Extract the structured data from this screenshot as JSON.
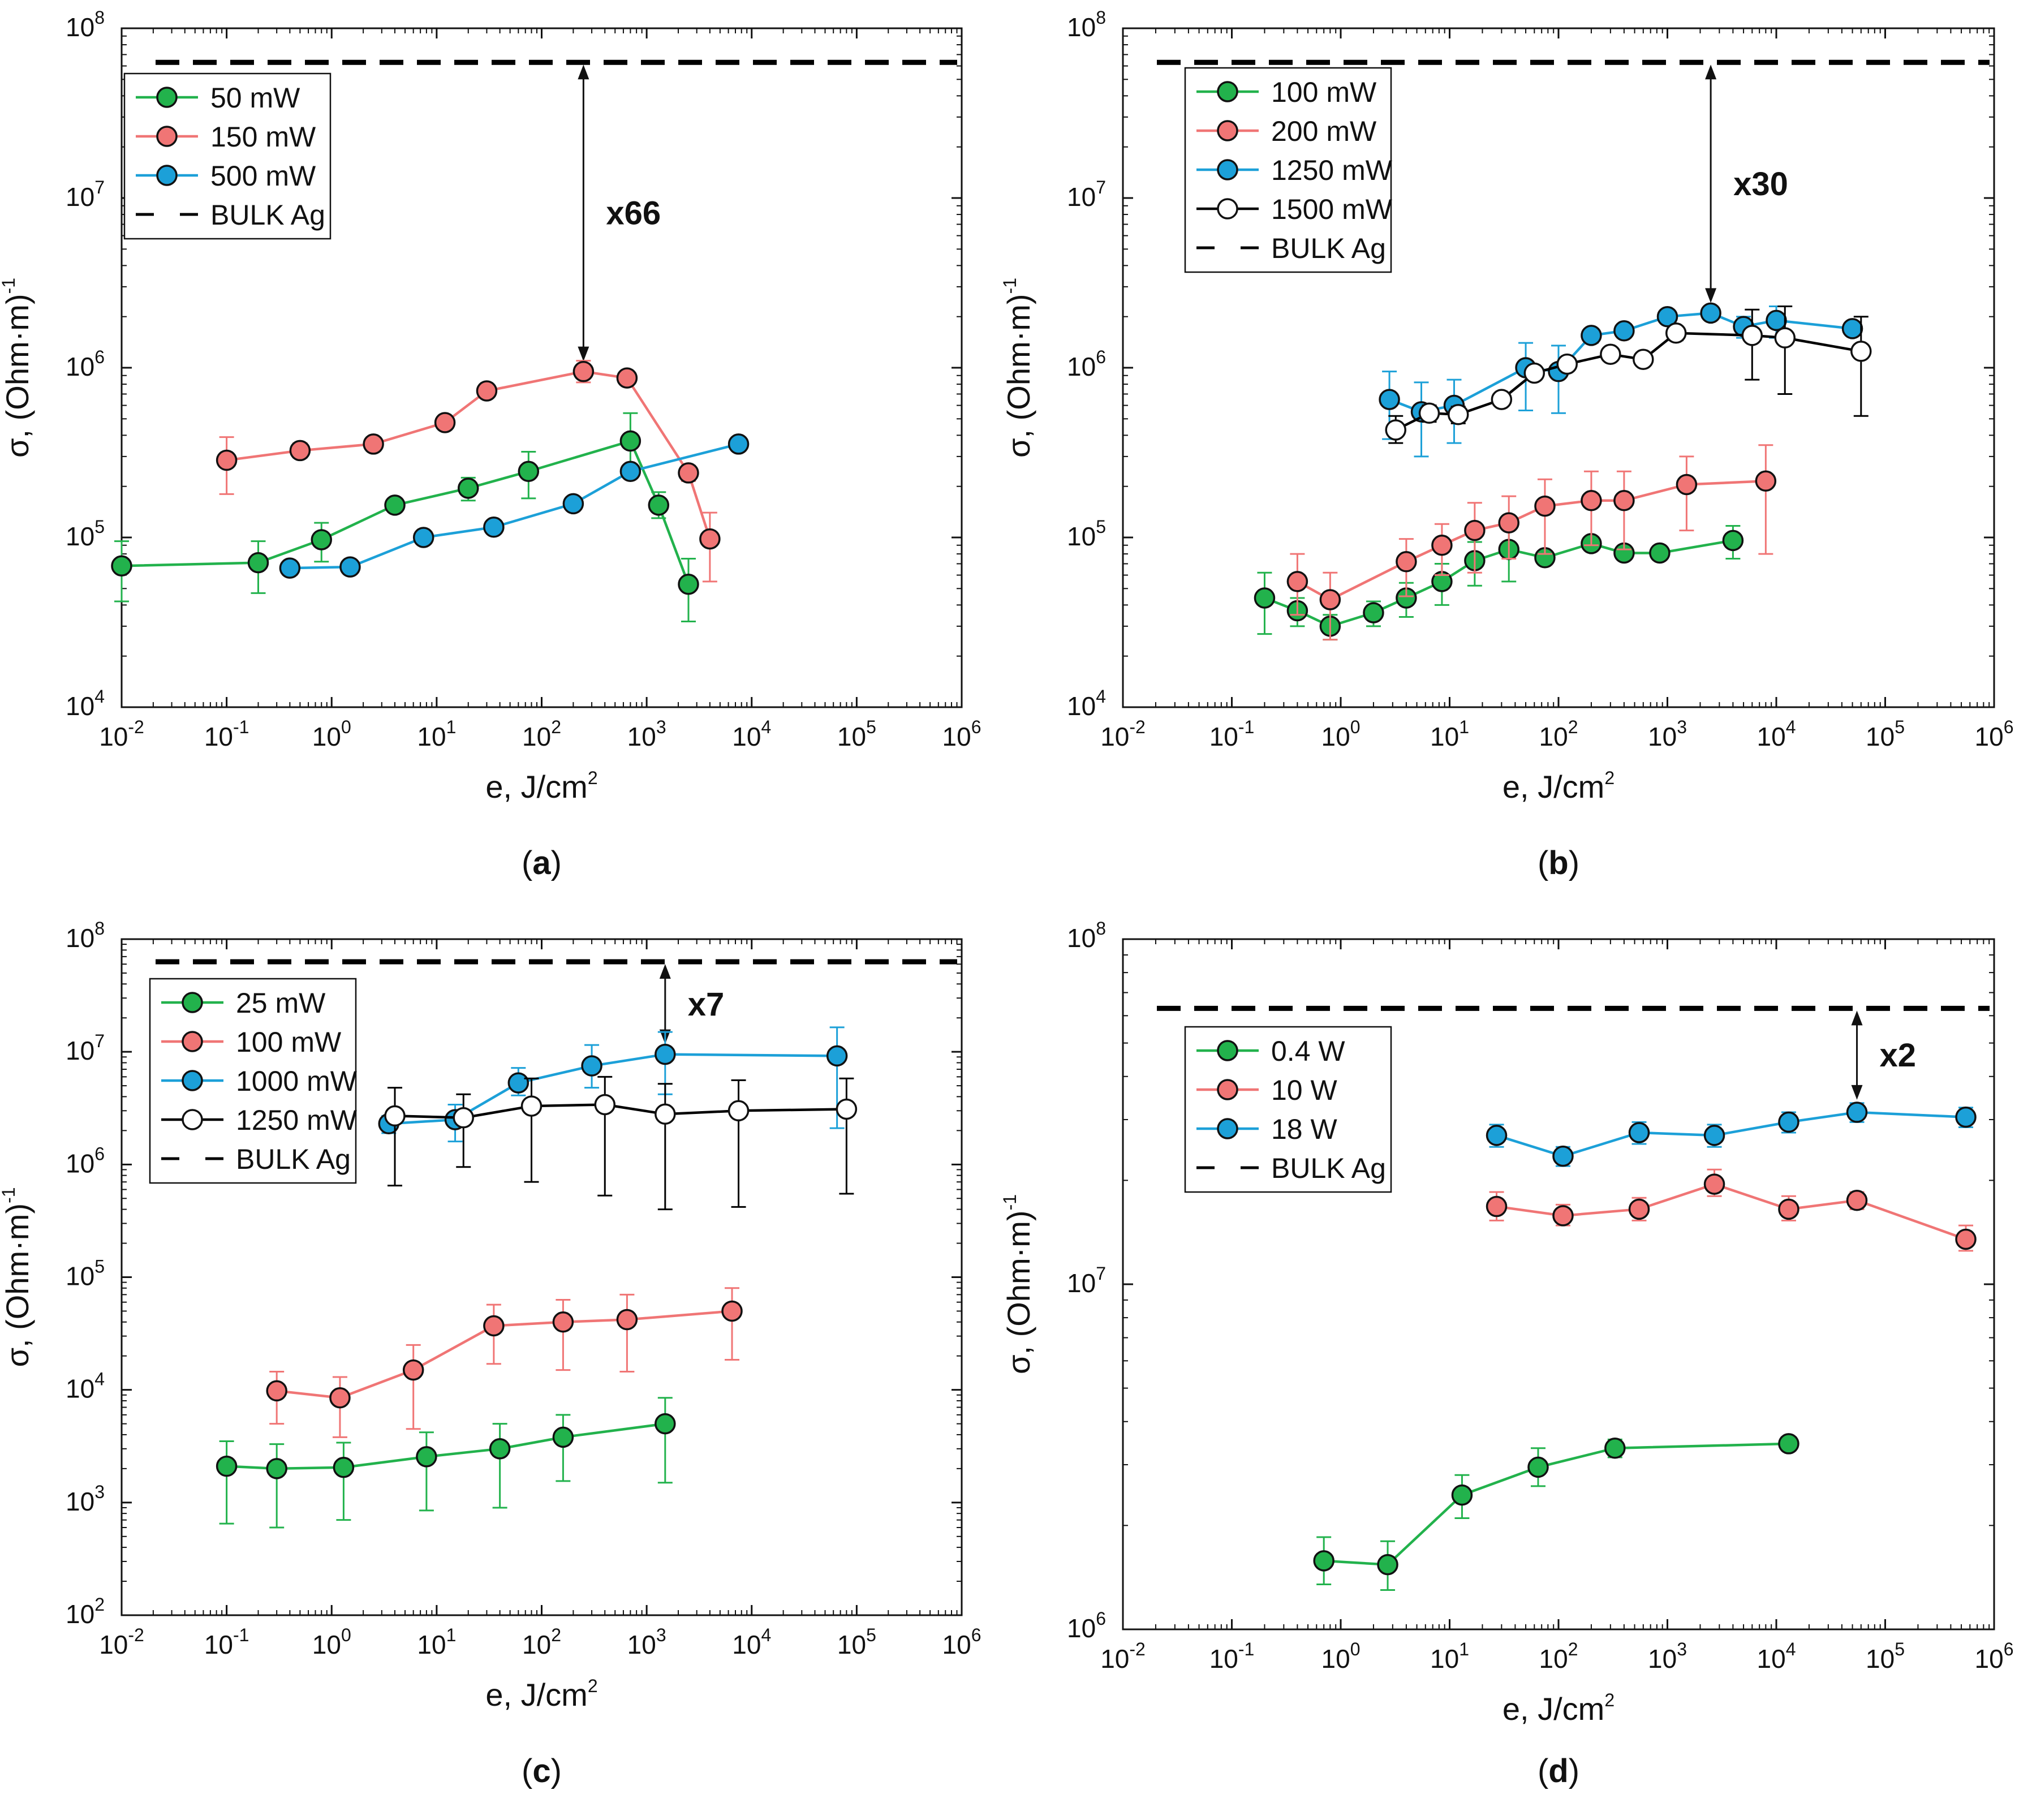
{
  "chart_data": [
    {
      "type": "scatter",
      "panel": "a",
      "x_scale": "log",
      "y_scale": "log",
      "xlim_exp": [
        -2,
        6
      ],
      "ylim_exp": [
        4,
        8
      ],
      "xlabel": "e, J/cm",
      "xlabel_sup": "2",
      "ylabel": "σ, (Ohm·m)",
      "ylabel_sup": "-1",
      "bulk_ag": 63000000.0,
      "legend": {
        "position": "top-left",
        "bulk_label": "BULK Ag"
      },
      "annotation": {
        "text": "x66",
        "x": 250,
        "y_from": 63000000.0,
        "y_to": 950000.0
      },
      "series": [
        {
          "name": "50 mW",
          "color": "#22b24c",
          "fill": "#22b24c",
          "x": [
            0.01,
            0.2,
            0.8,
            4,
            20,
            75,
            700,
            1300,
            2500
          ],
          "y": [
            68000,
            71000,
            97000,
            155000,
            195000,
            245000,
            370000,
            155000,
            53000
          ],
          "err_lo": [
            42000,
            47000,
            72000,
            142000,
            165000,
            170000,
            240000,
            130000,
            32000
          ],
          "err_hi": [
            95000,
            95000,
            122000,
            168000,
            225000,
            320000,
            540000,
            185000,
            75000
          ]
        },
        {
          "name": "150 mW",
          "color": "#f07575",
          "fill": "#f07575",
          "x": [
            0.1,
            0.5,
            2.5,
            12,
            30,
            250,
            650,
            2500,
            4000
          ],
          "y": [
            285000,
            325000,
            355000,
            475000,
            730000,
            950000,
            870000,
            240000,
            98000
          ],
          "err_lo": [
            180000,
            295000,
            330000,
            445000,
            700000,
            820000,
            840000,
            215000,
            55000
          ],
          "err_hi": [
            390000,
            360000,
            385000,
            505000,
            765000,
            1100000,
            905000,
            265000,
            140000
          ]
        },
        {
          "name": "500 mW",
          "color": "#1ca0d8",
          "fill": "#1ca0d8",
          "x": [
            0.4,
            1.5,
            7.5,
            35,
            200,
            700,
            7500
          ],
          "y": [
            66000,
            67000,
            100000,
            115000,
            158000,
            245000,
            355000
          ],
          "err_lo": [
            60000,
            63000,
            94000,
            107000,
            150000,
            235000,
            345000
          ],
          "err_hi": [
            72000,
            71000,
            106000,
            123000,
            166000,
            255000,
            365000
          ]
        }
      ]
    },
    {
      "type": "scatter",
      "panel": "b",
      "x_scale": "log",
      "y_scale": "log",
      "xlim_exp": [
        -2,
        6
      ],
      "ylim_exp": [
        4,
        8
      ],
      "xlabel": "e, J/cm",
      "xlabel_sup": "2",
      "ylabel": "σ, (Ohm·m)",
      "ylabel_sup": "-1",
      "bulk_ag": 63000000.0,
      "legend": {
        "position": "top-left",
        "bulk_label": "BULK Ag"
      },
      "annotation": {
        "text": "x30",
        "x": 2500,
        "y_from": 63000000.0,
        "y_to": 2100000.0
      },
      "series": [
        {
          "name": "100 mW",
          "color": "#22b24c",
          "fill": "#22b24c",
          "x": [
            0.2,
            0.4,
            0.8,
            2,
            4,
            8.5,
            17,
            35,
            75,
            200,
            400,
            850,
            4000
          ],
          "y": [
            44000,
            37000,
            30000,
            36000,
            44000,
            55000,
            73000,
            85000,
            76000,
            92000,
            81000,
            81000,
            96000
          ],
          "err_lo": [
            27000,
            30000,
            25000,
            30000,
            34000,
            40000,
            52000,
            55000,
            72000,
            88000,
            77000,
            78000,
            75000
          ],
          "err_hi": [
            62000,
            44000,
            35000,
            42000,
            54000,
            70000,
            94000,
            115000,
            80000,
            96000,
            85000,
            84000,
            117000
          ]
        },
        {
          "name": "200 mW",
          "color": "#f07575",
          "fill": "#f07575",
          "x": [
            0.4,
            0.8,
            4,
            8.5,
            17,
            35,
            75,
            200,
            400,
            1500,
            8000
          ],
          "y": [
            55000,
            43000,
            72000,
            90000,
            110000,
            122000,
            153000,
            165000,
            165000,
            205000,
            215000
          ],
          "err_lo": [
            35000,
            25000,
            45000,
            60000,
            62000,
            75000,
            80000,
            90000,
            85000,
            110000,
            80000
          ],
          "err_hi": [
            80000,
            62000,
            98000,
            120000,
            160000,
            175000,
            220000,
            245000,
            245000,
            300000,
            350000
          ]
        },
        {
          "name": "1250 mW",
          "color": "#1ca0d8",
          "fill": "#1ca0d8",
          "x": [
            2.8,
            5.5,
            11,
            50,
            100,
            200,
            400,
            1000,
            2500,
            5000,
            10000,
            50000
          ],
          "y": [
            650000,
            550000,
            600000,
            1000000,
            950000,
            1550000,
            1650000,
            2000000,
            2100000,
            1750000,
            1900000,
            1700000
          ],
          "err_lo": [
            380000,
            300000,
            360000,
            560000,
            540000,
            1400000,
            1550000,
            1900000,
            1950000,
            1500000,
            1500000,
            1550000
          ],
          "err_hi": [
            950000,
            820000,
            850000,
            1400000,
            1350000,
            1700000,
            1750000,
            2100000,
            2250000,
            2000000,
            2300000,
            1850000
          ]
        },
        {
          "name": "1500 mW",
          "color": "#000000",
          "fill": "#ffffff",
          "x": [
            3.2,
            6.5,
            12,
            30,
            60,
            120,
            300,
            600,
            1200,
            6000,
            12000,
            60000
          ],
          "y": [
            430000,
            540000,
            530000,
            650000,
            930000,
            1050000,
            1200000,
            1120000,
            1600000,
            1550000,
            1500000,
            1250000
          ],
          "err_lo": [
            360000,
            480000,
            470000,
            600000,
            870000,
            1000000,
            1130000,
            1060000,
            1450000,
            850000,
            700000,
            520000
          ],
          "err_hi": [
            520000,
            600000,
            590000,
            700000,
            990000,
            1100000,
            1270000,
            1180000,
            1750000,
            2200000,
            2300000,
            2000000
          ]
        }
      ]
    },
    {
      "type": "scatter",
      "panel": "c",
      "x_scale": "log",
      "y_scale": "log",
      "xlim_exp": [
        -2,
        6
      ],
      "ylim_exp": [
        2,
        8
      ],
      "xlabel": "e, J/cm",
      "xlabel_sup": "2",
      "ylabel": "σ, (Ohm·m)",
      "ylabel_sup": "-1",
      "bulk_ag": 63000000.0,
      "legend": {
        "position": "top-left",
        "bulk_label": "BULK Ag"
      },
      "annotation": {
        "text": "x7",
        "x": 1500,
        "y_from": 63000000.0,
        "y_to": 9500000.0
      },
      "series": [
        {
          "name": "25 mW",
          "color": "#22b24c",
          "fill": "#22b24c",
          "x": [
            0.1,
            0.3,
            1.3,
            8,
            40,
            160,
            1500
          ],
          "y": [
            2100,
            2000,
            2050,
            2550,
            3000,
            3800,
            5000
          ],
          "err_lo": [
            650,
            600,
            700,
            850,
            900,
            1550,
            1500
          ],
          "err_hi": [
            3500,
            3300,
            3400,
            4200,
            5000,
            6000,
            8500
          ]
        },
        {
          "name": "100 mW",
          "color": "#f07575",
          "fill": "#f07575",
          "x": [
            0.3,
            1.2,
            6,
            35,
            160,
            650,
            6500
          ],
          "y": [
            9800,
            8500,
            15000,
            37000,
            40000,
            42000,
            50000
          ],
          "err_lo": [
            5000,
            3800,
            4500,
            17000,
            15000,
            14500,
            18500
          ],
          "err_hi": [
            14500,
            13000,
            25000,
            57000,
            63000,
            70000,
            80000
          ]
        },
        {
          "name": "1000 mW",
          "color": "#1ca0d8",
          "fill": "#1ca0d8",
          "x": [
            3.5,
            15,
            60,
            300,
            1500,
            65000
          ],
          "y": [
            2300000,
            2500000,
            5300000,
            7500000,
            9500000,
            9200000
          ],
          "err_lo": [
            1900000,
            1600000,
            4100000,
            4800000,
            4200000,
            2100000
          ],
          "err_hi": [
            2700000,
            3400000,
            7200000,
            11500000,
            15000000,
            16500000
          ]
        },
        {
          "name": "1250 mW",
          "color": "#000000",
          "fill": "#ffffff",
          "x": [
            4,
            18,
            80,
            400,
            1500,
            7500,
            80000
          ],
          "y": [
            2700000,
            2600000,
            3300000,
            3400000,
            2800000,
            3000000,
            3100000
          ],
          "err_lo": [
            650000,
            950000,
            700000,
            530000,
            400000,
            420000,
            550000
          ],
          "err_hi": [
            4800000,
            4200000,
            5800000,
            6000000,
            5200000,
            5600000,
            5800000
          ]
        }
      ]
    },
    {
      "type": "scatter",
      "panel": "d",
      "x_scale": "log",
      "y_scale": "log",
      "xlim_exp": [
        -2,
        6
      ],
      "ylim_exp": [
        6,
        8
      ],
      "xlabel": "e, J/cm",
      "xlabel_sup": "2",
      "ylabel": "σ, (Ohm·m)",
      "ylabel_sup": "-1",
      "bulk_ag": 63000000.0,
      "legend": {
        "position": "top-left",
        "bulk_label": "BULK Ag"
      },
      "annotation": {
        "text": "x2",
        "x": 55000,
        "y_from": 63000000.0,
        "y_to": 32000000.0
      },
      "series": [
        {
          "name": "0.4 W",
          "color": "#22b24c",
          "fill": "#22b24c",
          "x": [
            0.7,
            2.7,
            13,
            65,
            330,
            13000
          ],
          "y": [
            1580000,
            1540000,
            2450000,
            2950000,
            3350000,
            3450000
          ],
          "err_lo": [
            1350000,
            1300000,
            2100000,
            2600000,
            3150000,
            3380000
          ],
          "err_hi": [
            1850000,
            1800000,
            2800000,
            3350000,
            3550000,
            3520000
          ]
        },
        {
          "name": "10 W",
          "color": "#f07575",
          "fill": "#f07575",
          "x": [
            27,
            110,
            550,
            2700,
            13000,
            55000,
            550000
          ],
          "y": [
            16800000,
            15800000,
            16500000,
            19500000,
            16500000,
            17500000,
            13500000
          ],
          "err_lo": [
            15300000,
            14800000,
            15300000,
            18000000,
            15300000,
            16500000,
            12500000
          ],
          "err_hi": [
            18500000,
            17000000,
            17800000,
            21500000,
            18000000,
            18500000,
            14800000
          ]
        },
        {
          "name": "18 W",
          "color": "#1ca0d8",
          "fill": "#1ca0d8",
          "x": [
            27,
            110,
            550,
            2700,
            13000,
            55000,
            550000
          ],
          "y": [
            27000000,
            23500000,
            27500000,
            27000000,
            29500000,
            31500000,
            30500000
          ],
          "err_lo": [
            25000000,
            22000000,
            25500000,
            25000000,
            27500000,
            29500000,
            28500000
          ],
          "err_hi": [
            29000000,
            25000000,
            29500000,
            29000000,
            31500000,
            33500000,
            32500000
          ]
        }
      ]
    }
  ]
}
